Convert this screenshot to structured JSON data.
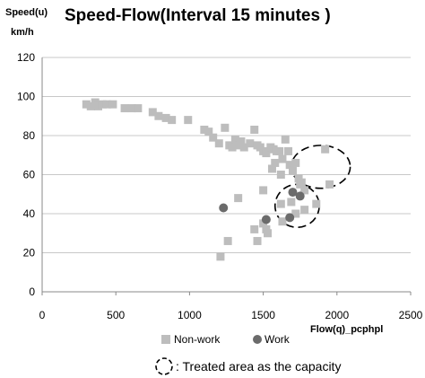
{
  "chart_data": {
    "type": "scatter",
    "title": "Speed-Flow(Interval 15 minutes )",
    "ylabel_line1": "Speed(u)",
    "ylabel_line2": "km/h",
    "xlabel": "Flow(q)_pcphpl",
    "xlim": [
      0,
      2500
    ],
    "ylim": [
      0,
      120
    ],
    "x_ticks": [
      "0",
      "500",
      "1000",
      "1500",
      "2000",
      "2500"
    ],
    "y_ticks": [
      "0",
      "20",
      "40",
      "60",
      "80",
      "100",
      "120"
    ],
    "grid": "horizontal",
    "legend_position": "bottom",
    "annotation": ": Treated area as the capacity",
    "series": [
      {
        "name": "Non-work",
        "color": "#bdbdbd",
        "marker": "square",
        "points": [
          [
            300,
            96
          ],
          [
            330,
            95
          ],
          [
            360,
            97
          ],
          [
            380,
            95
          ],
          [
            410,
            96
          ],
          [
            440,
            96
          ],
          [
            480,
            96
          ],
          [
            560,
            94
          ],
          [
            610,
            94
          ],
          [
            650,
            94
          ],
          [
            750,
            92
          ],
          [
            790,
            90
          ],
          [
            840,
            89
          ],
          [
            880,
            88
          ],
          [
            990,
            88
          ],
          [
            1100,
            83
          ],
          [
            1130,
            82
          ],
          [
            1160,
            79
          ],
          [
            1200,
            76
          ],
          [
            1240,
            84
          ],
          [
            1270,
            75
          ],
          [
            1290,
            74
          ],
          [
            1310,
            78
          ],
          [
            1330,
            75
          ],
          [
            1350,
            77
          ],
          [
            1370,
            74
          ],
          [
            1410,
            76
          ],
          [
            1440,
            83
          ],
          [
            1460,
            75
          ],
          [
            1480,
            74
          ],
          [
            1500,
            72
          ],
          [
            1520,
            71
          ],
          [
            1550,
            74
          ],
          [
            1570,
            73
          ],
          [
            1590,
            72
          ],
          [
            1610,
            72
          ],
          [
            1630,
            68
          ],
          [
            1650,
            78
          ],
          [
            1670,
            72
          ],
          [
            1680,
            65
          ],
          [
            1700,
            62
          ],
          [
            1720,
            66
          ],
          [
            1740,
            58
          ],
          [
            1750,
            55
          ],
          [
            1760,
            56
          ],
          [
            1780,
            52
          ],
          [
            1500,
            52
          ],
          [
            1560,
            63
          ],
          [
            1580,
            66
          ],
          [
            1620,
            60
          ],
          [
            1330,
            48
          ],
          [
            1620,
            45
          ],
          [
            1630,
            36
          ],
          [
            1690,
            46
          ],
          [
            1720,
            40
          ],
          [
            1780,
            42
          ],
          [
            1860,
            45
          ],
          [
            1920,
            73
          ],
          [
            1950,
            55
          ],
          [
            1210,
            18
          ],
          [
            1260,
            26
          ],
          [
            1440,
            32
          ],
          [
            1460,
            26
          ],
          [
            1500,
            35
          ],
          [
            1520,
            32
          ],
          [
            1530,
            30
          ]
        ]
      },
      {
        "name": "Work",
        "color": "#6b6b6b",
        "marker": "circle",
        "points": [
          [
            1230,
            43
          ],
          [
            1520,
            37
          ],
          [
            1680,
            38
          ],
          [
            1700,
            51
          ],
          [
            1750,
            49
          ]
        ]
      }
    ],
    "capacity_areas": [
      {
        "center": [
          1890,
          64
        ],
        "rx": 200,
        "ry": 11
      },
      {
        "center": [
          1730,
          44
        ],
        "rx": 150,
        "ry": 11
      }
    ]
  }
}
